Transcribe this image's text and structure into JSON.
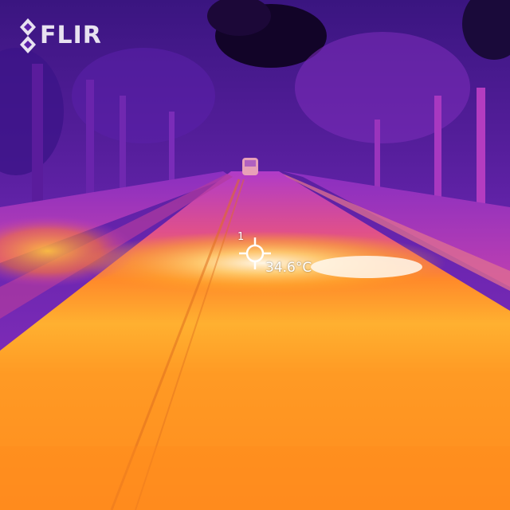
{
  "brand": {
    "name": "FLIR",
    "icon": "flir-diamond-logo"
  },
  "measurement": {
    "spot_id": "1",
    "value": "34.6",
    "unit": "°C",
    "icon": "crosshair-icon"
  },
  "palette": {
    "cold_deep": "#1c0a3a",
    "cold": "#4a1a8c",
    "cool": "#7a2cb8",
    "mid": "#c03cc0",
    "warm": "#ff6a20",
    "hot": "#ffa020",
    "hottest": "#fff4e0"
  }
}
